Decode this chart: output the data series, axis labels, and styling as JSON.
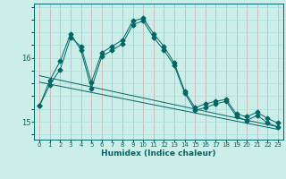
{
  "xlabel": "Humidex (Indice chaleur)",
  "bg_color": "#cceee8",
  "line_color": "#006666",
  "grid_h_color": "#aadddd",
  "grid_v_color": "#ccaaaa",
  "xlim": [
    -0.5,
    23.5
  ],
  "ylim": [
    14.72,
    16.85
  ],
  "yticks": [
    15,
    16
  ],
  "xticks": [
    0,
    1,
    2,
    3,
    4,
    5,
    6,
    7,
    8,
    9,
    10,
    11,
    12,
    13,
    14,
    15,
    16,
    17,
    18,
    19,
    20,
    21,
    22,
    23
  ],
  "series": [
    {
      "x": [
        0,
        1,
        2,
        3,
        4,
        5,
        6,
        7,
        8,
        9,
        10,
        11,
        12,
        13,
        14,
        15,
        16,
        17,
        18,
        19,
        20,
        21,
        22,
        23
      ],
      "y": [
        15.25,
        15.58,
        15.82,
        16.32,
        16.18,
        15.62,
        16.08,
        16.18,
        16.28,
        16.58,
        16.62,
        16.38,
        16.18,
        15.92,
        15.48,
        15.22,
        15.28,
        15.32,
        15.35,
        15.12,
        15.08,
        15.15,
        15.05,
        14.98
      ],
      "marker": "D",
      "markersize": 2.5
    },
    {
      "x": [
        0,
        1,
        2,
        3,
        4,
        5,
        6,
        7,
        8,
        9,
        10,
        11,
        12,
        13,
        14,
        15,
        16,
        17,
        18,
        19,
        20,
        21,
        22,
        23
      ],
      "y": [
        15.25,
        15.65,
        15.95,
        16.38,
        16.12,
        15.52,
        16.02,
        16.12,
        16.22,
        16.52,
        16.58,
        16.32,
        16.12,
        15.88,
        15.45,
        15.18,
        15.22,
        15.28,
        15.32,
        15.08,
        15.02,
        15.1,
        14.98,
        14.92
      ],
      "marker": "D",
      "markersize": 2.5
    },
    {
      "x": [
        0,
        23
      ],
      "y": [
        15.72,
        14.92
      ],
      "marker": null
    },
    {
      "x": [
        0,
        23
      ],
      "y": [
        15.62,
        14.88
      ],
      "marker": null
    }
  ]
}
